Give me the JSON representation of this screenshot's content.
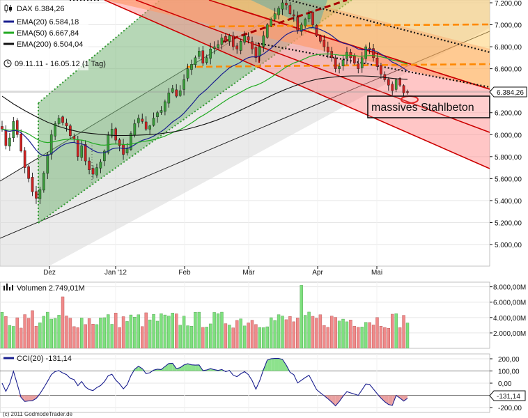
{
  "header": {
    "symbol": "DAX 6.384,26",
    "ema20": "EMA(20) 6.584,18",
    "ema50": "EMA(50) 6.667,84",
    "ema200": "EMA(200) 6.504,04",
    "period": "09.11.11 - 16.05.12 (1 Tag)"
  },
  "colors": {
    "ema20": "#1a1f8f",
    "ema50": "#22aa22",
    "ema200": "#111111",
    "up": "#3a9b3a",
    "down": "#cc2222",
    "vol_up": "#7ee07e",
    "vol_down": "#f08a8a",
    "cci_line": "#1a1f8f",
    "cci_pos": "#8de28d",
    "cci_neg": "#e9a0a0",
    "orange": "#ff8800"
  },
  "annotation": "massives Stahlbeton",
  "copyright": "(c) 2011 GodmodeTrader.de",
  "last_price_label": "6.384,26",
  "chart_data": [
    {
      "type": "candlestick",
      "title": "DAX 6.384,26",
      "x_months": [
        "Dez",
        "Jan '12",
        "Feb",
        "Mär",
        "Apr",
        "Mai"
      ],
      "y_ticks": [
        "7.200,00",
        "7.000,00",
        "6.800,00",
        "6.600,00",
        "6.400,00",
        "6.200,00",
        "6.000,00",
        "5.800,00",
        "5.600,00",
        "5.400,00",
        "5.200,00",
        "5.000,00"
      ],
      "y_tick_values": [
        7200,
        7000,
        6800,
        6600,
        6400,
        6200,
        6000,
        5800,
        5600,
        5400,
        5200,
        5000
      ],
      "ylim": [
        5000,
        7240
      ],
      "series": [
        {
          "name": "EMA(20) 6.584,18"
        },
        {
          "name": "EMA(50) 6.667,84"
        },
        {
          "name": "EMA(200) 6.504,04"
        }
      ],
      "close_path": [
        6050,
        5900,
        5970,
        6120,
        6000,
        5850,
        5700,
        5600,
        5480,
        5420,
        5500,
        5650,
        5820,
        6000,
        6100,
        6150,
        6110,
        6080,
        5990,
        5960,
        5800,
        5900,
        5760,
        5680,
        5640,
        5700,
        5750,
        5850,
        6000,
        6050,
        5950,
        5900,
        5820,
        5880,
        6010,
        6100,
        6150,
        6120,
        6050,
        6080,
        6150,
        6200,
        6220,
        6300,
        6380,
        6420,
        6350,
        6400,
        6500,
        6600,
        6640,
        6700,
        6760,
        6650,
        6700,
        6780,
        6800,
        6820,
        6880,
        6850,
        6900,
        6800,
        6780,
        6850,
        6900,
        6860,
        6780,
        6700,
        6800,
        6900,
        7000,
        7050,
        7100,
        7150,
        7200,
        7180,
        7100,
        7080,
        6950,
        7000,
        7050,
        7100,
        7000,
        6900,
        6850,
        6800,
        6750,
        6700,
        6600,
        6620,
        6680,
        6750,
        6700,
        6650,
        6600,
        6700,
        6800,
        6780,
        6700,
        6620,
        6550,
        6500,
        6450,
        6400,
        6500,
        6450,
        6380,
        6384
      ],
      "ema200_path": [
        6350,
        6280,
        6220,
        6165,
        6115,
        6075,
        6045,
        6022,
        6010,
        6000,
        5993,
        5992,
        5995,
        6000,
        6008,
        6022,
        6040,
        6065,
        6095,
        6130,
        6170,
        6215,
        6262,
        6310,
        6360,
        6405,
        6445,
        6480,
        6505,
        6520,
        6530,
        6534,
        6534,
        6530,
        6520,
        6508,
        6504
      ]
    },
    {
      "type": "bar",
      "title": "Volumen 2.749,01M",
      "y_ticks": [
        "8.000,00M",
        "6.000,00M",
        "4.000,00M",
        "2.000,00M"
      ],
      "y_tick_values": [
        8000,
        6000,
        4000,
        2000
      ],
      "ylim": [
        0,
        8600
      ]
    },
    {
      "type": "line",
      "title": "CCI(20) -131,14",
      "y_ticks": [
        "200,00",
        "100,00",
        "0,00",
        "-100,00",
        "-200,00"
      ],
      "y_tick_values": [
        200,
        100,
        0,
        -100,
        -200
      ],
      "ylim": [
        -240,
        240
      ],
      "current_label": "-131,14"
    }
  ]
}
